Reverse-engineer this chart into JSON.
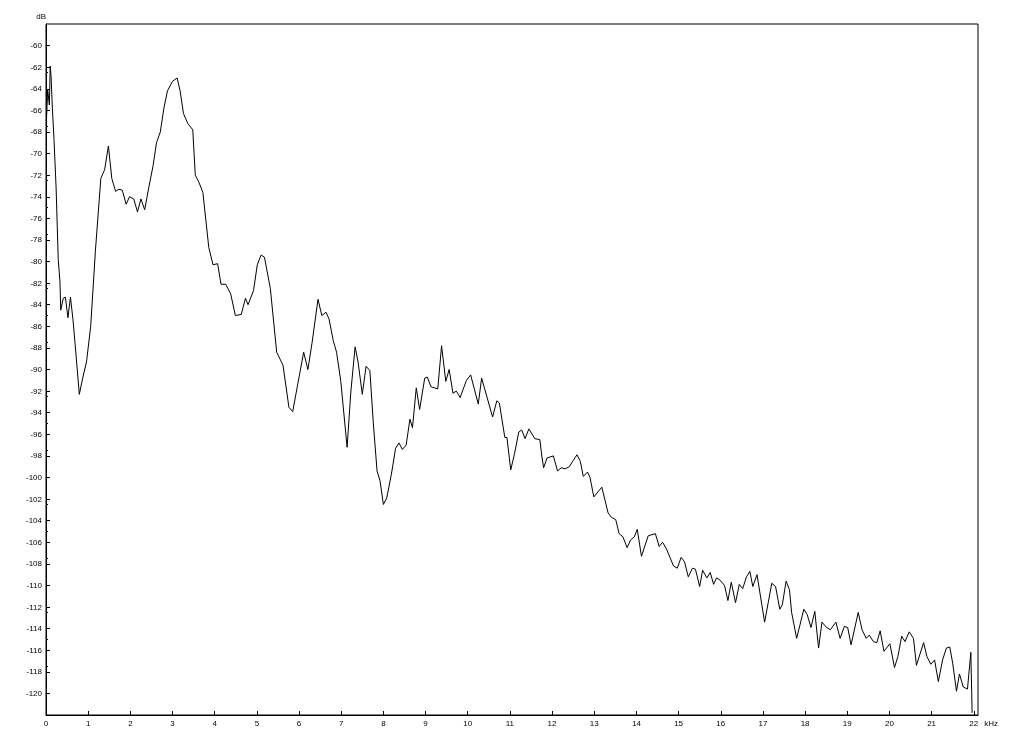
{
  "chart_data": {
    "type": "line",
    "xlabel": "kHz",
    "ylabel": "dB",
    "x": [
      0.01,
      0.04,
      0.08,
      0.1,
      0.12,
      0.15,
      0.19,
      0.24,
      0.29,
      0.33,
      0.35,
      0.41,
      0.46,
      0.52,
      0.58,
      0.64,
      0.7,
      0.79,
      0.87,
      0.96,
      1.06,
      1.17,
      1.3,
      1.39,
      1.48,
      1.56,
      1.65,
      1.73,
      1.81,
      1.9,
      1.98,
      2.08,
      2.17,
      2.25,
      2.34,
      2.44,
      2.54,
      2.62,
      2.71,
      2.8,
      2.88,
      3.0,
      3.11,
      3.18,
      3.26,
      3.36,
      3.48,
      3.54,
      3.63,
      3.72,
      3.86,
      3.96,
      4.07,
      4.15,
      4.26,
      4.38,
      4.49,
      4.63,
      4.73,
      4.79,
      4.92,
      5.01,
      5.1,
      5.18,
      5.32,
      5.47,
      5.62,
      5.76,
      5.85,
      6.01,
      6.11,
      6.21,
      6.31,
      6.45,
      6.54,
      6.64,
      6.71,
      6.81,
      6.89,
      6.99,
      7.14,
      7.23,
      7.33,
      7.4,
      7.5,
      7.59,
      7.68,
      7.76,
      7.85,
      7.92,
      8.0,
      8.08,
      8.19,
      8.29,
      8.37,
      8.45,
      8.54,
      8.63,
      8.69,
      8.78,
      8.86,
      8.98,
      9.04,
      9.13,
      9.29,
      9.38,
      9.48,
      9.56,
      9.65,
      9.73,
      9.82,
      9.97,
      10.07,
      10.25,
      10.33,
      10.59,
      10.69,
      10.75,
      10.88,
      10.93,
      11.02,
      11.11,
      11.21,
      11.28,
      11.36,
      11.45,
      11.59,
      11.71,
      11.76,
      11.8,
      11.88,
      12.03,
      12.13,
      12.22,
      12.31,
      12.41,
      12.49,
      12.59,
      12.67,
      12.74,
      12.84,
      12.9,
      12.99,
      13.18,
      13.33,
      13.41,
      13.51,
      13.59,
      13.68,
      13.78,
      13.86,
      13.95,
      14.02,
      14.12,
      14.28,
      14.45,
      14.54,
      14.62,
      14.71,
      14.88,
      14.97,
      15.06,
      15.14,
      15.23,
      15.33,
      15.4,
      15.5,
      15.57,
      15.67,
      15.75,
      15.83,
      15.9,
      15.98,
      16.09,
      16.17,
      16.25,
      16.35,
      16.44,
      16.52,
      16.61,
      16.69,
      16.76,
      16.86,
      17.04,
      17.21,
      17.3,
      17.4,
      17.46,
      17.55,
      17.63,
      17.68,
      17.8,
      17.97,
      18.05,
      18.14,
      18.23,
      18.32,
      18.4,
      18.51,
      18.6,
      18.73,
      18.83,
      18.93,
      19.01,
      19.09,
      19.26,
      19.35,
      19.45,
      19.52,
      19.62,
      19.7,
      19.78,
      19.87,
      20.01,
      20.12,
      20.2,
      20.29,
      20.37,
      20.47,
      20.57,
      20.64,
      20.81,
      20.89,
      20.98,
      21.07,
      21.16,
      21.26,
      21.35,
      21.43,
      21.5,
      21.59,
      21.66,
      21.75,
      21.85,
      21.93,
      21.95,
      21.96
    ],
    "series": [
      {
        "color": "#000000",
        "values": [
          -67.0,
          -64.1,
          -65.5,
          -61.9,
          -62.8,
          -65.7,
          -68.7,
          -73.2,
          -79.8,
          -81.8,
          -84.5,
          -83.4,
          -83.3,
          -85.2,
          -83.3,
          -85.4,
          -88.1,
          -92.3,
          -90.8,
          -89.3,
          -86.0,
          -79.1,
          -72.3,
          -71.5,
          -69.3,
          -72.3,
          -73.5,
          -73.3,
          -73.4,
          -74.7,
          -74.0,
          -74.2,
          -75.4,
          -74.2,
          -75.2,
          -73.1,
          -71.1,
          -69.0,
          -68.0,
          -65.7,
          -64.2,
          -63.3,
          -63.0,
          -64.2,
          -66.3,
          -67.2,
          -67.8,
          -72.0,
          -72.7,
          -73.6,
          -78.7,
          -80.3,
          -80.2,
          -82.1,
          -82.1,
          -83.0,
          -85.0,
          -84.9,
          -83.4,
          -84.0,
          -82.7,
          -80.3,
          -79.4,
          -79.6,
          -82.5,
          -88.4,
          -89.6,
          -93.5,
          -93.9,
          -90.5,
          -88.4,
          -90.0,
          -87.5,
          -83.5,
          -85.0,
          -84.7,
          -85.3,
          -87.3,
          -88.4,
          -91.1,
          -97.2,
          -92.0,
          -87.9,
          -89.3,
          -92.3,
          -89.7,
          -90.1,
          -94.9,
          -99.4,
          -100.3,
          -102.5,
          -101.9,
          -99.7,
          -97.3,
          -96.8,
          -97.4,
          -97.0,
          -94.6,
          -95.4,
          -91.7,
          -93.7,
          -90.8,
          -90.7,
          -91.6,
          -91.8,
          -87.8,
          -91.1,
          -90.0,
          -92.2,
          -92.0,
          -92.6,
          -91.0,
          -90.5,
          -93.2,
          -90.8,
          -94.4,
          -92.9,
          -93.1,
          -96.3,
          -96.3,
          -99.3,
          -97.8,
          -95.8,
          -95.6,
          -96.4,
          -95.5,
          -96.4,
          -96.5,
          -98.1,
          -99.1,
          -98.2,
          -98.0,
          -99.4,
          -99.1,
          -99.2,
          -99.0,
          -98.5,
          -97.9,
          -98.5,
          -99.9,
          -99.5,
          -100.0,
          -101.8,
          -100.9,
          -103.3,
          -103.7,
          -103.9,
          -105.2,
          -105.5,
          -106.5,
          -105.8,
          -105.5,
          -104.8,
          -107.3,
          -105.4,
          -105.2,
          -106.4,
          -106.0,
          -106.6,
          -108.2,
          -108.4,
          -107.4,
          -107.8,
          -109.2,
          -108.4,
          -108.5,
          -110.1,
          -108.6,
          -109.3,
          -108.8,
          -109.9,
          -109.3,
          -109.5,
          -110.0,
          -111.4,
          -109.7,
          -111.6,
          -109.9,
          -110.3,
          -109.2,
          -108.7,
          -110.1,
          -109.0,
          -113.4,
          -109.8,
          -110.1,
          -112.2,
          -111.8,
          -109.6,
          -110.4,
          -112.5,
          -114.9,
          -112.2,
          -112.7,
          -113.9,
          -112.4,
          -115.8,
          -113.4,
          -113.9,
          -114.1,
          -113.4,
          -114.9,
          -113.8,
          -113.9,
          -115.5,
          -112.5,
          -114.1,
          -114.9,
          -114.6,
          -115.2,
          -115.3,
          -114.2,
          -116.1,
          -115.4,
          -117.6,
          -116.6,
          -114.7,
          -115.2,
          -114.3,
          -114.9,
          -117.4,
          -115.3,
          -116.6,
          -117.3,
          -116.9,
          -118.9,
          -116.9,
          -115.8,
          -115.7,
          -117.2,
          -119.8,
          -118.2,
          -119.4,
          -119.6,
          -116.2,
          -119.8,
          -121.8
        ]
      }
    ],
    "xlim": [
      0,
      22.1
    ],
    "ylim": [
      -122,
      -58
    ],
    "xticks": [
      0,
      1,
      2,
      3,
      4,
      5,
      6,
      7,
      8,
      9,
      10,
      11,
      12,
      13,
      14,
      15,
      16,
      17,
      18,
      19,
      20,
      21,
      22
    ],
    "yticks": [
      -60,
      -62,
      -64,
      -66,
      -68,
      -70,
      -72,
      -74,
      -76,
      -78,
      -80,
      -82,
      -84,
      -86,
      -88,
      -90,
      -92,
      -94,
      -96,
      -98,
      -100,
      -102,
      -104,
      -106,
      -108,
      -110,
      -112,
      -114,
      -116,
      -118,
      -120
    ],
    "grid": false,
    "marker": "none",
    "line_style": "solid"
  }
}
